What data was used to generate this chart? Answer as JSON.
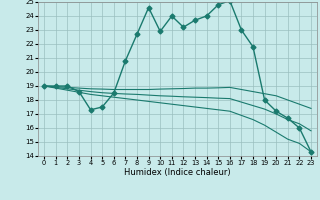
{
  "xlabel": "Humidex (Indice chaleur)",
  "xlim": [
    -0.5,
    23.5
  ],
  "ylim": [
    14,
    25
  ],
  "background_color": "#c8eaea",
  "grid_color": "#9bbfbf",
  "line_color": "#1a7a6e",
  "lines": [
    {
      "x": [
        0,
        1,
        2,
        3,
        4,
        5,
        6,
        7,
        8,
        9,
        10,
        11,
        12,
        13,
        14,
        15,
        16,
        17,
        18,
        19,
        20,
        21,
        22,
        23
      ],
      "y": [
        19,
        19,
        19,
        18.6,
        17.3,
        17.5,
        18.5,
        20.8,
        22.7,
        24.6,
        22.9,
        24.0,
        23.2,
        23.7,
        24.0,
        24.8,
        25.1,
        23.0,
        21.8,
        18.0,
        17.2,
        16.7,
        16.0,
        14.3
      ],
      "marker": "D",
      "markersize": 2.5,
      "linewidth": 1.0
    },
    {
      "x": [
        0,
        1,
        2,
        3,
        4,
        5,
        6,
        7,
        8,
        9,
        10,
        11,
        12,
        13,
        14,
        15,
        16,
        17,
        18,
        19,
        20,
        21,
        22,
        23
      ],
      "y": [
        19,
        18.95,
        18.9,
        18.85,
        18.8,
        18.78,
        18.75,
        18.75,
        18.75,
        18.75,
        18.78,
        18.8,
        18.82,
        18.85,
        18.85,
        18.87,
        18.9,
        18.75,
        18.6,
        18.45,
        18.3,
        18.0,
        17.7,
        17.4
      ],
      "marker": null,
      "markersize": 0,
      "linewidth": 0.8
    },
    {
      "x": [
        0,
        1,
        2,
        3,
        4,
        5,
        6,
        7,
        8,
        9,
        10,
        11,
        12,
        13,
        14,
        15,
        16,
        17,
        18,
        19,
        20,
        21,
        22,
        23
      ],
      "y": [
        19,
        18.85,
        18.7,
        18.55,
        18.4,
        18.3,
        18.2,
        18.1,
        18.0,
        17.9,
        17.8,
        17.7,
        17.6,
        17.5,
        17.4,
        17.3,
        17.2,
        16.9,
        16.6,
        16.2,
        15.7,
        15.2,
        14.9,
        14.3
      ],
      "marker": null,
      "markersize": 0,
      "linewidth": 0.8
    },
    {
      "x": [
        0,
        1,
        2,
        3,
        4,
        5,
        6,
        7,
        8,
        9,
        10,
        11,
        12,
        13,
        14,
        15,
        16,
        17,
        18,
        19,
        20,
        21,
        22,
        23
      ],
      "y": [
        19,
        18.9,
        18.8,
        18.7,
        18.6,
        18.52,
        18.47,
        18.43,
        18.4,
        18.35,
        18.3,
        18.27,
        18.23,
        18.2,
        18.17,
        18.13,
        18.1,
        17.85,
        17.6,
        17.35,
        17.0,
        16.6,
        16.3,
        15.8
      ],
      "marker": null,
      "markersize": 0,
      "linewidth": 0.8
    }
  ]
}
